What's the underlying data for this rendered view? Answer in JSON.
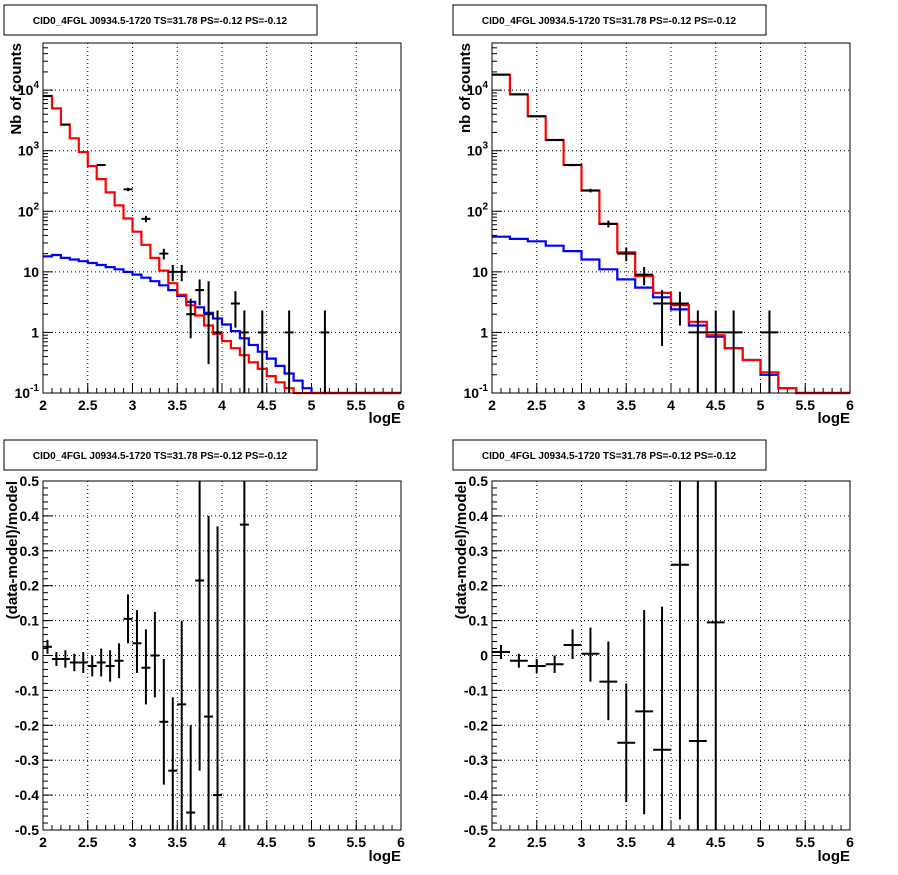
{
  "colors": {
    "data": "#000000",
    "model": "#ff0000",
    "background": "#0000ff"
  },
  "chart_data": [
    {
      "panel": "top-left",
      "type": "line",
      "title": "CID0_4FGL J0934.5-1720 TS=31.78 PS=-0.12 PS=-0.12",
      "xlabel": "logE",
      "ylabel": "Nb of counts",
      "xlim": [
        2,
        6
      ],
      "ylim": [
        0.1,
        60000
      ],
      "yscale": "log",
      "grid": true,
      "xticks": [
        "2",
        "2.5",
        "3",
        "3.5",
        "4",
        "4.5",
        "5",
        "5.5",
        "6"
      ],
      "yticks": [
        {
          "base": "10",
          "exp": "-1"
        },
        {
          "base": "1",
          "exp": ""
        },
        {
          "base": "10",
          "exp": ""
        },
        {
          "base": "10",
          "exp": "2"
        },
        {
          "base": "10",
          "exp": "3"
        },
        {
          "base": "10",
          "exp": "4"
        }
      ],
      "bin_edges": [
        2.0,
        2.1,
        2.2,
        2.3,
        2.4,
        2.5,
        2.6,
        2.7,
        2.8,
        2.9,
        3.0,
        3.1,
        3.2,
        3.3,
        3.4,
        3.5,
        3.6,
        3.7,
        3.8,
        3.9,
        4.0,
        4.1,
        4.2,
        4.3,
        4.4,
        4.5,
        4.6,
        4.7,
        4.8,
        4.9,
        5.0,
        5.1,
        5.2,
        5.3,
        5.4,
        5.5,
        5.6,
        5.7,
        5.8,
        5.9,
        6.0
      ],
      "series": [
        {
          "name": "",
          "role": "model",
          "color": "#ff0000",
          "values": [
            8000,
            5000,
            2700,
            1600,
            950,
            560,
            340,
            205,
            125,
            76,
            46,
            28,
            17,
            10.5,
            6.5,
            4.2,
            2.8,
            1.9,
            1.3,
            0.95,
            0.72,
            0.55,
            0.42,
            0.32,
            0.25,
            0.19,
            0.15,
            0.12,
            0.1,
            0.1,
            0.1,
            0.1,
            0.1,
            0.1,
            0.1,
            0.1,
            0.1,
            0.1,
            0.1,
            0.1
          ]
        },
        {
          "name": "",
          "role": "background",
          "color": "#0000ff",
          "values": [
            18,
            19,
            17,
            16,
            15,
            14,
            13,
            12,
            11,
            10,
            9,
            8,
            7,
            6,
            5,
            4,
            3.2,
            2.6,
            2.1,
            1.7,
            1.35,
            1.05,
            0.8,
            0.62,
            0.48,
            0.37,
            0.28,
            0.21,
            0.16,
            0.12,
            0.1,
            0.1,
            0.1,
            0.1,
            0.1,
            0.1,
            0.1,
            0.1,
            0.1,
            0.1
          ]
        }
      ],
      "points": [
        {
          "x": 2.05,
          "y": 8000,
          "lo": 7900,
          "hi": 8100
        },
        {
          "x": 2.25,
          "y": 2700,
          "lo": 2650,
          "hi": 2750
        },
        {
          "x": 2.65,
          "y": 580,
          "lo": 560,
          "hi": 600
        },
        {
          "x": 2.95,
          "y": 230,
          "lo": 215,
          "hi": 245
        },
        {
          "x": 3.15,
          "y": 75,
          "lo": 66,
          "hi": 84
        },
        {
          "x": 3.35,
          "y": 20,
          "lo": 16,
          "hi": 24
        },
        {
          "x": 3.45,
          "y": 10,
          "lo": 7,
          "hi": 13
        },
        {
          "x": 3.55,
          "y": 10,
          "lo": 7,
          "hi": 13
        },
        {
          "x": 3.65,
          "y": 2,
          "lo": 0.8,
          "hi": 3.6
        },
        {
          "x": 3.75,
          "y": 5,
          "lo": 2.8,
          "hi": 7.5
        },
        {
          "x": 3.85,
          "y": 2,
          "lo": 0.3,
          "hi": 7
        },
        {
          "x": 3.95,
          "y": 1,
          "lo": 0.1,
          "hi": 2.3
        },
        {
          "x": 4.15,
          "y": 3,
          "lo": 1.2,
          "hi": 4.8
        },
        {
          "x": 4.25,
          "y": 1,
          "lo": 0.1,
          "hi": 2.3
        },
        {
          "x": 4.45,
          "y": 1,
          "lo": 0.1,
          "hi": 2.3
        },
        {
          "x": 4.75,
          "y": 1,
          "lo": 0.1,
          "hi": 2.3
        },
        {
          "x": 5.15,
          "y": 1,
          "lo": 0.1,
          "hi": 2.3
        }
      ]
    },
    {
      "panel": "top-right",
      "type": "line",
      "title": "CID0_4FGL J0934.5-1720 TS=31.78 PS=-0.12 PS=-0.12",
      "xlabel": "logE",
      "ylabel": "nb of counts",
      "xlim": [
        2,
        6
      ],
      "ylim": [
        0.1,
        60000
      ],
      "yscale": "log",
      "grid": true,
      "xticks": [
        "2",
        "2.5",
        "3",
        "3.5",
        "4",
        "4.5",
        "5",
        "5.5",
        "6"
      ],
      "yticks": [
        {
          "base": "10",
          "exp": "-1"
        },
        {
          "base": "1",
          "exp": ""
        },
        {
          "base": "10",
          "exp": ""
        },
        {
          "base": "10",
          "exp": "2"
        },
        {
          "base": "10",
          "exp": "3"
        },
        {
          "base": "10",
          "exp": "4"
        }
      ],
      "bin_edges": [
        2.0,
        2.2,
        2.4,
        2.6,
        2.8,
        3.0,
        3.2,
        3.4,
        3.6,
        3.8,
        4.0,
        4.2,
        4.4,
        4.6,
        4.8,
        5.0,
        5.2,
        5.4,
        5.6,
        5.8,
        6.0
      ],
      "series": [
        {
          "name": "",
          "role": "model",
          "color": "#ff0000",
          "values": [
            18000,
            8500,
            3700,
            1500,
            580,
            220,
            62,
            21,
            8.5,
            4.5,
            2.8,
            1.5,
            0.9,
            0.55,
            0.35,
            0.22,
            0.12,
            0.1,
            0.1,
            0.1
          ]
        },
        {
          "name": "",
          "role": "background",
          "color": "#0000ff",
          "values": [
            38,
            35,
            32,
            27,
            22,
            16,
            11,
            7.5,
            5.5,
            3.8,
            2.4,
            1.3,
            0.85,
            0.55,
            0.35,
            0.2,
            0.12,
            0.1,
            0.1,
            0.1
          ]
        }
      ],
      "points": [
        {
          "x": 2.1,
          "y": 18000,
          "lo": 17800,
          "hi": 18200
        },
        {
          "x": 2.3,
          "y": 8500,
          "lo": 8350,
          "hi": 8650
        },
        {
          "x": 2.5,
          "y": 3700,
          "lo": 3600,
          "hi": 3800
        },
        {
          "x": 2.7,
          "y": 1500,
          "lo": 1450,
          "hi": 1550
        },
        {
          "x": 2.9,
          "y": 580,
          "lo": 555,
          "hi": 605
        },
        {
          "x": 3.1,
          "y": 220,
          "lo": 205,
          "hi": 235
        },
        {
          "x": 3.3,
          "y": 62,
          "lo": 54,
          "hi": 70
        },
        {
          "x": 3.5,
          "y": 20,
          "lo": 15,
          "hi": 25
        },
        {
          "x": 3.7,
          "y": 9,
          "lo": 6,
          "hi": 12
        },
        {
          "x": 3.9,
          "y": 3,
          "lo": 0.6,
          "hi": 5
        },
        {
          "x": 4.1,
          "y": 3,
          "lo": 1.3,
          "hi": 4.7
        },
        {
          "x": 4.3,
          "y": 1,
          "lo": 0.1,
          "hi": 2.3
        },
        {
          "x": 4.5,
          "y": 1,
          "lo": 0.1,
          "hi": 2.3
        },
        {
          "x": 4.7,
          "y": 1,
          "lo": 0.1,
          "hi": 2.3
        },
        {
          "x": 5.1,
          "y": 1,
          "lo": 0.1,
          "hi": 2.3
        }
      ]
    },
    {
      "panel": "bottom-left",
      "type": "scatter",
      "title": "CID0_4FGL J0934.5-1720 TS=31.78 PS=-0.12 PS=-0.12",
      "xlabel": "logE",
      "ylabel": "(data-model)/model",
      "xlim": [
        2,
        6
      ],
      "ylim": [
        -0.5,
        0.5
      ],
      "yscale": "linear",
      "grid": true,
      "xticks": [
        "2",
        "2.5",
        "3",
        "3.5",
        "4",
        "4.5",
        "5",
        "5.5",
        "6"
      ],
      "yticks": [
        "-0.5",
        "-0.4",
        "-0.3",
        "-0.2",
        "-0.1",
        "0",
        "0.1",
        "0.2",
        "0.3",
        "0.4",
        "0.5"
      ],
      "xerr": 0.05,
      "points": [
        {
          "x": 2.05,
          "y": 0.025,
          "lo": 0.005,
          "hi": 0.045
        },
        {
          "x": 2.15,
          "y": -0.01,
          "lo": -0.03,
          "hi": 0.01
        },
        {
          "x": 2.25,
          "y": -0.01,
          "lo": -0.035,
          "hi": 0.015
        },
        {
          "x": 2.35,
          "y": -0.02,
          "lo": -0.045,
          "hi": 0.005
        },
        {
          "x": 2.45,
          "y": -0.02,
          "lo": -0.05,
          "hi": 0.01
        },
        {
          "x": 2.55,
          "y": -0.03,
          "lo": -0.06,
          "hi": 0.0
        },
        {
          "x": 2.65,
          "y": -0.02,
          "lo": -0.06,
          "hi": 0.02
        },
        {
          "x": 2.75,
          "y": -0.03,
          "lo": -0.075,
          "hi": 0.015
        },
        {
          "x": 2.85,
          "y": -0.015,
          "lo": -0.065,
          "hi": 0.035
        },
        {
          "x": 2.95,
          "y": 0.105,
          "lo": 0.035,
          "hi": 0.175
        },
        {
          "x": 3.05,
          "y": 0.035,
          "lo": -0.05,
          "hi": 0.13
        },
        {
          "x": 3.15,
          "y": -0.035,
          "lo": -0.14,
          "hi": 0.075
        },
        {
          "x": 3.25,
          "y": 0.0,
          "lo": -0.12,
          "hi": 0.125
        },
        {
          "x": 3.35,
          "y": -0.19,
          "lo": -0.37,
          "hi": -0.01
        },
        {
          "x": 3.45,
          "y": -0.33,
          "lo": -0.5,
          "hi": -0.12
        },
        {
          "x": 3.55,
          "y": -0.14,
          "lo": -0.5,
          "hi": 0.1
        },
        {
          "x": 3.65,
          "y": -0.45,
          "lo": -0.5,
          "hi": -0.2
        },
        {
          "x": 3.75,
          "y": 0.215,
          "lo": -0.33,
          "hi": 0.5
        },
        {
          "x": 3.85,
          "y": -0.175,
          "lo": -0.5,
          "hi": 0.4
        },
        {
          "x": 3.95,
          "y": -0.4,
          "lo": -0.5,
          "hi": 0.37
        },
        {
          "x": 4.25,
          "y": 0.375,
          "lo": -0.5,
          "hi": 0.5
        }
      ]
    },
    {
      "panel": "bottom-right",
      "type": "scatter",
      "title": "CID0_4FGL J0934.5-1720 TS=31.78 PS=-0.12 PS=-0.12",
      "xlabel": "logE",
      "ylabel": "(data-model)/model",
      "xlim": [
        2,
        6
      ],
      "ylim": [
        -0.5,
        0.5
      ],
      "yscale": "linear",
      "grid": true,
      "xticks": [
        "2",
        "2.5",
        "3",
        "3.5",
        "4",
        "4.5",
        "5",
        "5.5",
        "6"
      ],
      "yticks": [
        "-0.5",
        "-0.4",
        "-0.3",
        "-0.2",
        "-0.1",
        "0",
        "0.1",
        "0.2",
        "0.3",
        "0.4",
        "0.5"
      ],
      "xerr": 0.1,
      "points": [
        {
          "x": 2.1,
          "y": 0.01,
          "lo": -0.01,
          "hi": 0.03
        },
        {
          "x": 2.3,
          "y": -0.015,
          "lo": -0.035,
          "hi": 0.005
        },
        {
          "x": 2.5,
          "y": -0.03,
          "lo": -0.05,
          "hi": -0.01
        },
        {
          "x": 2.7,
          "y": -0.025,
          "lo": -0.05,
          "hi": 0.0
        },
        {
          "x": 2.9,
          "y": 0.03,
          "lo": -0.01,
          "hi": 0.075
        },
        {
          "x": 3.1,
          "y": 0.005,
          "lo": -0.075,
          "hi": 0.08
        },
        {
          "x": 3.3,
          "y": -0.075,
          "lo": -0.185,
          "hi": 0.04
        },
        {
          "x": 3.5,
          "y": -0.25,
          "lo": -0.42,
          "hi": -0.08
        },
        {
          "x": 3.7,
          "y": -0.16,
          "lo": -0.455,
          "hi": 0.13
        },
        {
          "x": 3.9,
          "y": -0.27,
          "lo": -0.5,
          "hi": 0.14
        },
        {
          "x": 4.1,
          "y": 0.26,
          "lo": -0.47,
          "hi": 0.5
        },
        {
          "x": 4.3,
          "y": -0.245,
          "lo": -0.5,
          "hi": 0.5
        },
        {
          "x": 4.5,
          "y": 0.095,
          "lo": -0.5,
          "hi": 0.5
        }
      ]
    }
  ]
}
